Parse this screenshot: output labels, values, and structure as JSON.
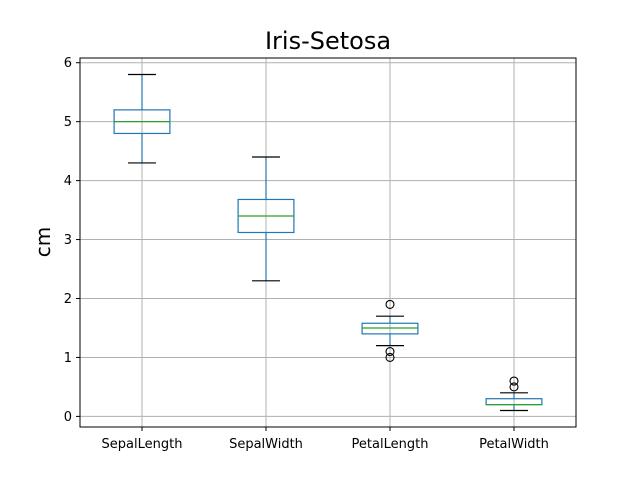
{
  "chart_data": {
    "type": "box",
    "title": "Iris-Setosa",
    "xlabel": "",
    "ylabel": "cm",
    "ylim": [
      -0.18,
      6.08
    ],
    "yticks": [
      0,
      1,
      2,
      3,
      4,
      5,
      6
    ],
    "grid": true,
    "colors": {
      "box": "#1f77b4",
      "median": "#2ca02c",
      "whisker_cap": "#000000",
      "outlier": "#000000",
      "grid": "#b0b0b0"
    },
    "categories": [
      "SepalLength",
      "SepalWidth",
      "PetalLength",
      "PetalWidth"
    ],
    "boxes": [
      {
        "name": "SepalLength",
        "whislo": 4.3,
        "q1": 4.8,
        "med": 5.0,
        "q3": 5.2,
        "whishi": 5.8,
        "fliers": []
      },
      {
        "name": "SepalWidth",
        "whislo": 2.3,
        "q1": 3.12,
        "med": 3.4,
        "q3": 3.68,
        "whishi": 4.4,
        "fliers": []
      },
      {
        "name": "PetalLength",
        "whislo": 1.2,
        "q1": 1.4,
        "med": 1.5,
        "q3": 1.58,
        "whishi": 1.7,
        "fliers": [
          1.0,
          1.1,
          1.9
        ]
      },
      {
        "name": "PetalWidth",
        "whislo": 0.1,
        "q1": 0.2,
        "med": 0.2,
        "q3": 0.3,
        "whishi": 0.4,
        "fliers": [
          0.5,
          0.6
        ]
      }
    ]
  }
}
